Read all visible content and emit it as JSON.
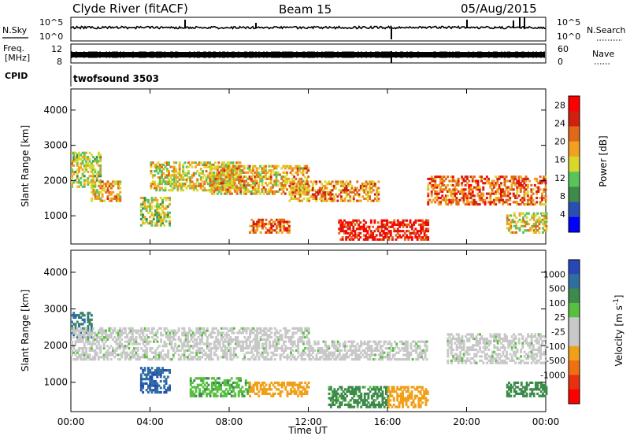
{
  "header": {
    "station": "Clyde River (fitACF)",
    "beam": "Beam 15",
    "date": "05/Aug/2015"
  },
  "strip_labels": {
    "nsky": "N.Sky",
    "freq_line1": "Freq.",
    "freq_line2": "[MHz]",
    "cpid": "CPID",
    "nsearch": "N.Search",
    "nave": "Nave",
    "cpid_name": "twofsound 3503",
    "noise_top_left": "10^5",
    "noise_bottom_left": "10^0",
    "noise_top_right": "10^5",
    "noise_bottom_right": "10^0",
    "freq_top": "12",
    "freq_bottom": "8",
    "nave_top": "60",
    "nave_bottom": "0"
  },
  "colors": {
    "power_scale": [
      "#0000ff",
      "#2a4fb4",
      "#3d8a4b",
      "#5ac35a",
      "#d8d82a",
      "#f2a020",
      "#e06818",
      "#d02010",
      "#ff0000"
    ],
    "velocity_scale": [
      "#2848b8",
      "#2e6fa0",
      "#3d8a4b",
      "#58c040",
      "#c8c8c8",
      "#c8c8c8",
      "#f0a018",
      "#f07010",
      "#e83010",
      "#ff0000"
    ]
  },
  "chart_data": [
    {
      "type": "heatmap",
      "title": "",
      "xlabel": "",
      "ylabel": "Slant Range [km]",
      "ylim": [
        200,
        4600
      ],
      "xlim": [
        0,
        24
      ],
      "y_ticks": [
        "1000",
        "2000",
        "3000",
        "4000"
      ],
      "x_ticks": [
        "00:00",
        "04:00",
        "08:00",
        "12:00",
        "16:00",
        "20:00",
        "00:00"
      ],
      "colorbar": {
        "label": "Power [dB]",
        "ticks": [
          "4",
          "8",
          "12",
          "16",
          "20",
          "24",
          "28"
        ],
        "range": [
          0,
          30
        ]
      },
      "regions": [
        {
          "t0": 0.0,
          "t1": 1.5,
          "r0": 1800,
          "r1": 2800,
          "value": 14
        },
        {
          "t0": 1.0,
          "t1": 2.5,
          "r0": 1400,
          "r1": 2000,
          "value": 18
        },
        {
          "t0": 3.5,
          "t1": 5.0,
          "r0": 700,
          "r1": 1500,
          "value": 14
        },
        {
          "t0": 4.0,
          "t1": 8.5,
          "r0": 1700,
          "r1": 2500,
          "value": 16
        },
        {
          "t0": 7.0,
          "t1": 12.0,
          "r0": 1600,
          "r1": 2400,
          "value": 18
        },
        {
          "t0": 9.0,
          "t1": 11.0,
          "r0": 500,
          "r1": 900,
          "value": 22
        },
        {
          "t0": 11.0,
          "t1": 15.5,
          "r0": 1400,
          "r1": 2000,
          "value": 20
        },
        {
          "t0": 13.5,
          "t1": 18.0,
          "r0": 300,
          "r1": 900,
          "value": 26
        },
        {
          "t0": 18.0,
          "t1": 24.0,
          "r0": 1300,
          "r1": 2100,
          "value": 22
        },
        {
          "t0": 22.0,
          "t1": 24.0,
          "r0": 500,
          "r1": 1100,
          "value": 16
        }
      ]
    },
    {
      "type": "heatmap",
      "title": "",
      "xlabel": "Time UT",
      "ylabel": "Slant Range [km]",
      "ylim": [
        200,
        4600
      ],
      "xlim": [
        0,
        24
      ],
      "y_ticks": [
        "1000",
        "2000",
        "3000",
        "4000"
      ],
      "x_ticks": [
        "00:00",
        "04:00",
        "08:00",
        "12:00",
        "16:00",
        "20:00",
        "00:00"
      ],
      "colorbar": {
        "label": "Velocity [m s^-1]",
        "ticks": [
          "1000",
          "500",
          "100",
          "25",
          "-25",
          "-100",
          "-500",
          "-1000"
        ]
      },
      "regions": [
        {
          "t0": 0.0,
          "t1": 1.0,
          "r0": 2200,
          "r1": 2900,
          "value": 600
        },
        {
          "t0": 0.0,
          "t1": 12.0,
          "r0": 1600,
          "r1": 2500,
          "value": 0
        },
        {
          "t0": 3.5,
          "t1": 5.0,
          "r0": 700,
          "r1": 1400,
          "value": 900
        },
        {
          "t0": 6.0,
          "t1": 9.0,
          "r0": 600,
          "r1": 1100,
          "value": 80
        },
        {
          "t0": 9.0,
          "t1": 12.0,
          "r0": 600,
          "r1": 1000,
          "value": -200
        },
        {
          "t0": 13.0,
          "t1": 16.0,
          "r0": 300,
          "r1": 900,
          "value": 150
        },
        {
          "t0": 16.0,
          "t1": 18.0,
          "r0": 300,
          "r1": 900,
          "value": -300
        },
        {
          "t0": 12.0,
          "t1": 18.0,
          "r0": 1600,
          "r1": 2100,
          "value": 0
        },
        {
          "t0": 19.0,
          "t1": 24.0,
          "r0": 1500,
          "r1": 2300,
          "value": 0
        },
        {
          "t0": 22.0,
          "t1": 24.0,
          "r0": 600,
          "r1": 1000,
          "value": 200
        }
      ]
    }
  ]
}
